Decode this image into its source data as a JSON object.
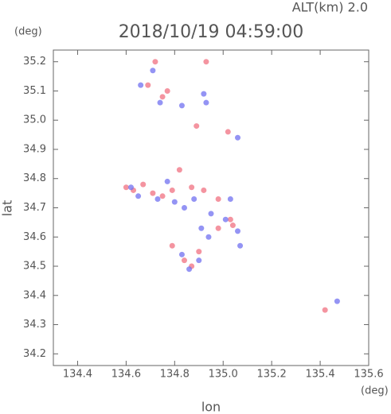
{
  "chart_data": {
    "type": "scatter",
    "title": "2018/10/19 04:59:00",
    "subtitle": "ALT(km) 2.0",
    "x_label": "lon",
    "y_label": "lat",
    "x_unit": "(deg)",
    "y_unit": "(deg)",
    "xlim": [
      134.3,
      135.6
    ],
    "ylim": [
      34.16,
      35.24
    ],
    "xticks": [
      134.4,
      134.6,
      134.8,
      {
        "value": 135.0,
        "label": "135.0"
      },
      135.2,
      135.4,
      135.6
    ],
    "yticks": [
      34.2,
      34.3,
      34.4,
      34.5,
      34.6,
      34.7,
      34.8,
      34.9,
      {
        "value": 35.0,
        "label": "35.0"
      },
      35.1,
      35.2
    ],
    "series": [
      {
        "color": "#f07080",
        "x": [
          134.72,
          134.69,
          134.77,
          134.75,
          134.93,
          135.02,
          134.89,
          134.6,
          134.63,
          134.67,
          134.71,
          134.75,
          134.79,
          134.82,
          134.87,
          134.92,
          134.98,
          135.03,
          134.98,
          135.04,
          134.84,
          134.87,
          134.9,
          135.42,
          134.79
        ],
        "y": [
          35.2,
          35.12,
          35.1,
          35.08,
          35.2,
          34.96,
          34.98,
          34.77,
          34.76,
          34.78,
          34.75,
          34.74,
          34.76,
          34.83,
          34.77,
          34.76,
          34.73,
          34.66,
          34.63,
          34.64,
          34.52,
          34.5,
          34.55,
          34.35,
          34.57
        ]
      },
      {
        "color": "#7070f0",
        "x": [
          134.71,
          134.66,
          134.74,
          134.83,
          134.92,
          134.93,
          135.06,
          134.62,
          134.65,
          134.73,
          134.77,
          134.8,
          134.84,
          134.88,
          134.95,
          135.03,
          135.01,
          135.06,
          134.83,
          134.86,
          134.9,
          134.94,
          135.07,
          135.47,
          134.91
        ],
        "y": [
          35.17,
          35.12,
          35.06,
          35.05,
          35.09,
          35.06,
          34.94,
          34.77,
          34.74,
          34.73,
          34.79,
          34.72,
          34.7,
          34.73,
          34.68,
          34.73,
          34.66,
          34.62,
          34.54,
          34.49,
          34.52,
          34.6,
          34.57,
          34.38,
          34.63
        ]
      }
    ]
  }
}
